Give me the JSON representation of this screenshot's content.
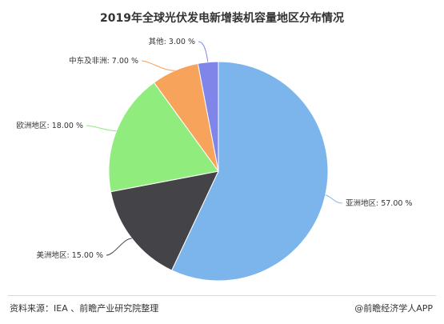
{
  "chart_data": {
    "type": "pie",
    "title": "2019年全球光伏发电新增装机容量地区分布情况",
    "slices": [
      {
        "label": "亚洲地区: 57.00 %",
        "value": 57.0,
        "color": "#7cb5ec"
      },
      {
        "label": "美洲地区: 15.00 %",
        "value": 15.0,
        "color": "#434348"
      },
      {
        "label": "欧洲地区: 18.00 %",
        "value": 18.0,
        "color": "#90ed7d"
      },
      {
        "label": "中东及非洲: 7.00 %",
        "value": 7.0,
        "color": "#f7a35c"
      },
      {
        "label": "其他: 3.00 %",
        "value": 3.0,
        "color": "#8085e9"
      }
    ]
  },
  "footer": {
    "source": "资料来源：IEA 、前瞻产业研究院整理",
    "brand": "@前瞻经济学人APP"
  }
}
